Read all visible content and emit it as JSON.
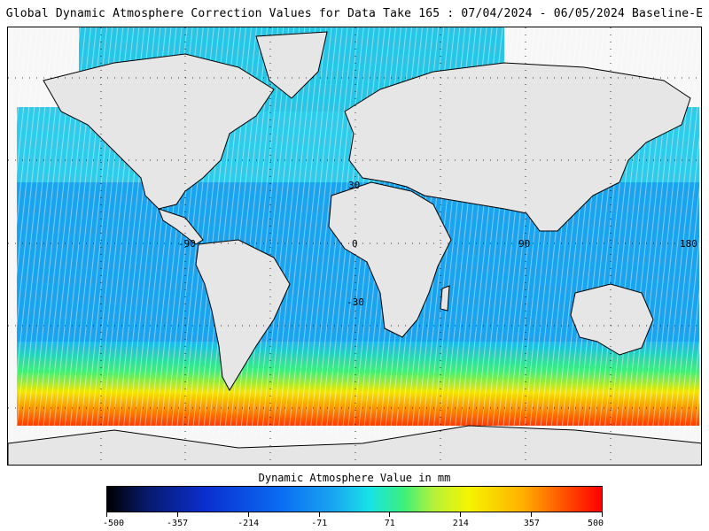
{
  "title": "Global Dynamic Atmosphere Correction Values for Data Take 165 : 07/04/2024 - 06/05/2024 Baseline-E",
  "map": {
    "lat_labels": [
      "30",
      "0",
      "-30"
    ],
    "lon_labels": [
      "-90",
      "0",
      "90",
      "180"
    ]
  },
  "colorbar": {
    "title": "Dynamic Atmosphere Value in mm",
    "ticks": [
      "-500",
      "-357",
      "-214",
      "-71",
      "71",
      "214",
      "357",
      "500"
    ],
    "range": [
      -500,
      500
    ],
    "colors": [
      "#000000",
      "#0a2fd0",
      "#1aa7f0",
      "#18e3e8",
      "#3cf07a",
      "#f5f500",
      "#ffb000",
      "#ff0000"
    ]
  }
}
